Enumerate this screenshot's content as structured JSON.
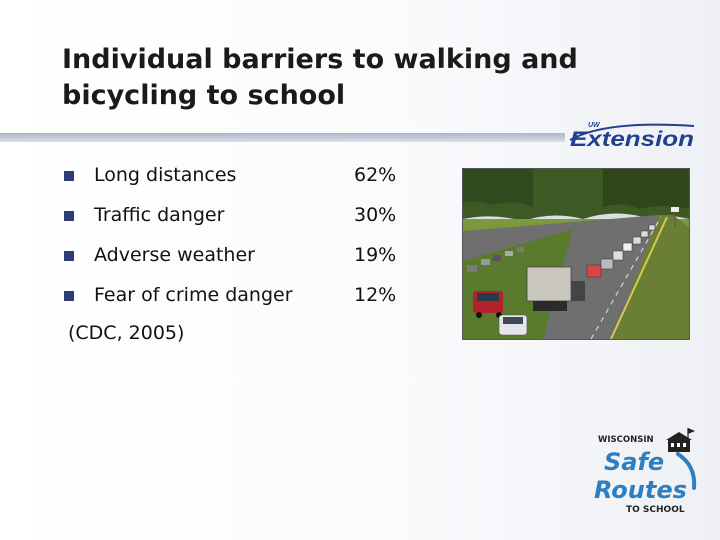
{
  "slide": {
    "title": "Individual barriers to walking and bicycling to school",
    "bullets": [
      {
        "label": "Long distances",
        "value": "62%"
      },
      {
        "label": "Traffic danger",
        "value": "30%"
      },
      {
        "label": "Adverse weather",
        "value": "19%"
      },
      {
        "label": "Fear of crime danger",
        "value": "12%"
      }
    ],
    "citation": "(CDC, 2005)"
  },
  "logos": {
    "extension": {
      "prefix": "UW",
      "name": "Extension"
    },
    "srts": {
      "state": "WISCONSIN",
      "line1": "Safe",
      "line2": "Routes",
      "line3": "TO SCHOOL"
    }
  },
  "colors": {
    "bullet": "#2e3d7a",
    "rule": "#b8bccb",
    "extension_blue": "#1f3f8f",
    "srts_blue": "#2f7fc0"
  },
  "photo": {
    "icon": "traffic-photo"
  }
}
